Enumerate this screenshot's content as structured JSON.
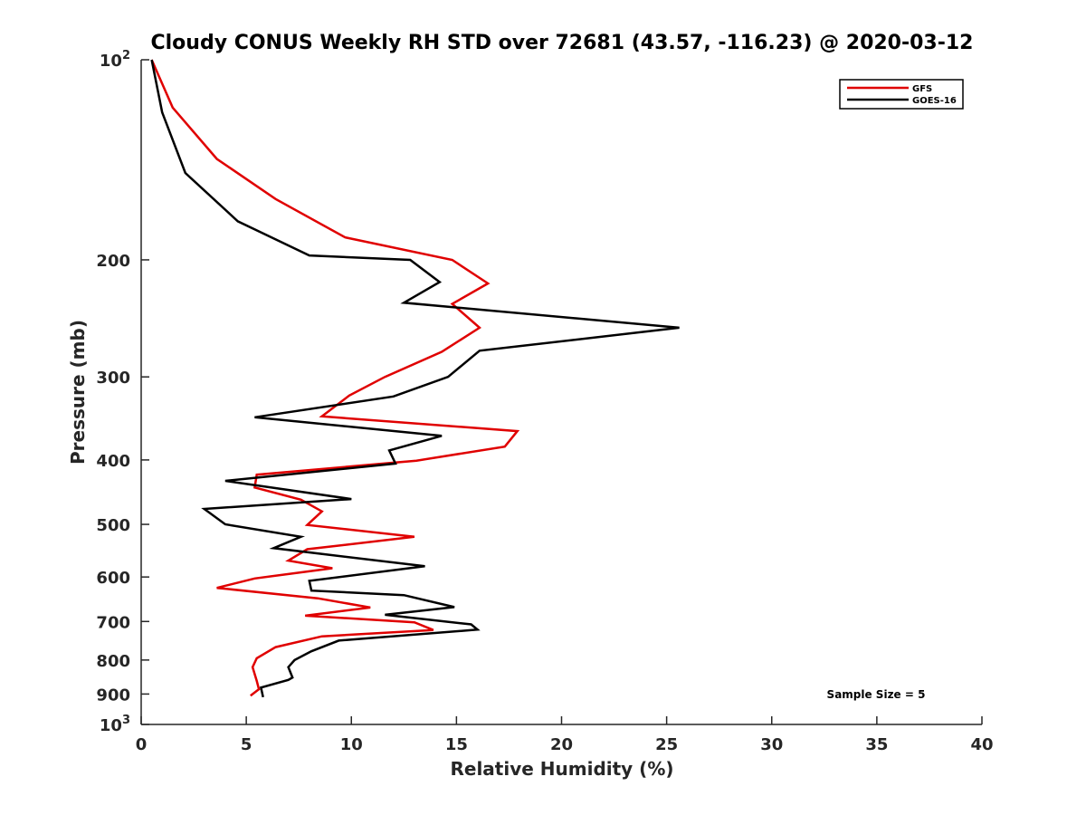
{
  "chart_data": {
    "type": "line",
    "title": "Cloudy CONUS Weekly RH STD over 72681 (43.57, -116.23) @ 2020-03-12",
    "xlabel": "Relative Humidity (%)",
    "ylabel": "Pressure (mb)",
    "xlim": [
      0,
      40
    ],
    "ylim": [
      100,
      1000
    ],
    "y_scale": "log",
    "y_reversed": true,
    "x_ticks": [
      {
        "value": 0,
        "label": "0"
      },
      {
        "value": 5,
        "label": "5"
      },
      {
        "value": 10,
        "label": "10"
      },
      {
        "value": 15,
        "label": "15"
      },
      {
        "value": 20,
        "label": "20"
      },
      {
        "value": 25,
        "label": "25"
      },
      {
        "value": 30,
        "label": "30"
      },
      {
        "value": 35,
        "label": "35"
      },
      {
        "value": 40,
        "label": "40"
      }
    ],
    "y_ticks": [
      {
        "value": 100,
        "label": "10",
        "exp": "2"
      },
      {
        "value": 200,
        "label": "200"
      },
      {
        "value": 300,
        "label": "300"
      },
      {
        "value": 400,
        "label": "400"
      },
      {
        "value": 500,
        "label": "500"
      },
      {
        "value": 600,
        "label": "600"
      },
      {
        "value": 700,
        "label": "700"
      },
      {
        "value": 800,
        "label": "800"
      },
      {
        "value": 900,
        "label": "900"
      },
      {
        "value": 1000,
        "label": "10",
        "exp": "3"
      }
    ],
    "grid": false,
    "legend_position": "top-right",
    "annotation": "Sample Size = 5",
    "series": [
      {
        "name": "GFS",
        "color": "#e00000",
        "points": [
          {
            "x": 0.5,
            "y": 100
          },
          {
            "x": 1.5,
            "y": 118
          },
          {
            "x": 3.6,
            "y": 141
          },
          {
            "x": 6.4,
            "y": 162
          },
          {
            "x": 9.7,
            "y": 185
          },
          {
            "x": 14.8,
            "y": 200
          },
          {
            "x": 16.5,
            "y": 217
          },
          {
            "x": 14.8,
            "y": 233
          },
          {
            "x": 16.1,
            "y": 253
          },
          {
            "x": 14.3,
            "y": 275
          },
          {
            "x": 11.6,
            "y": 300
          },
          {
            "x": 9.9,
            "y": 320
          },
          {
            "x": 8.6,
            "y": 344
          },
          {
            "x": 17.9,
            "y": 362
          },
          {
            "x": 17.3,
            "y": 382
          },
          {
            "x": 13.1,
            "y": 401
          },
          {
            "x": 5.5,
            "y": 421
          },
          {
            "x": 5.4,
            "y": 440
          },
          {
            "x": 7.6,
            "y": 459
          },
          {
            "x": 8.6,
            "y": 478
          },
          {
            "x": 7.9,
            "y": 501
          },
          {
            "x": 13.0,
            "y": 522
          },
          {
            "x": 7.9,
            "y": 545
          },
          {
            "x": 7.0,
            "y": 567
          },
          {
            "x": 9.1,
            "y": 582
          },
          {
            "x": 5.4,
            "y": 603
          },
          {
            "x": 3.6,
            "y": 623
          },
          {
            "x": 8.4,
            "y": 646
          },
          {
            "x": 10.9,
            "y": 667
          },
          {
            "x": 7.8,
            "y": 686
          },
          {
            "x": 13.0,
            "y": 702
          },
          {
            "x": 13.9,
            "y": 721
          },
          {
            "x": 8.6,
            "y": 737
          },
          {
            "x": 6.4,
            "y": 765
          },
          {
            "x": 5.5,
            "y": 795
          },
          {
            "x": 5.3,
            "y": 820
          },
          {
            "x": 5.5,
            "y": 860
          },
          {
            "x": 5.6,
            "y": 885
          },
          {
            "x": 5.2,
            "y": 905
          }
        ]
      },
      {
        "name": "GOES-16",
        "color": "#000000",
        "points": [
          {
            "x": 0.5,
            "y": 100
          },
          {
            "x": 1.0,
            "y": 120
          },
          {
            "x": 2.1,
            "y": 148
          },
          {
            "x": 4.6,
            "y": 175
          },
          {
            "x": 8.0,
            "y": 197
          },
          {
            "x": 12.8,
            "y": 200
          },
          {
            "x": 14.2,
            "y": 216
          },
          {
            "x": 12.5,
            "y": 232
          },
          {
            "x": 25.6,
            "y": 253
          },
          {
            "x": 16.1,
            "y": 274
          },
          {
            "x": 14.6,
            "y": 300
          },
          {
            "x": 12.0,
            "y": 321
          },
          {
            "x": 5.4,
            "y": 345
          },
          {
            "x": 14.3,
            "y": 368
          },
          {
            "x": 11.8,
            "y": 387
          },
          {
            "x": 12.1,
            "y": 405
          },
          {
            "x": 4.0,
            "y": 430
          },
          {
            "x": 10.0,
            "y": 458
          },
          {
            "x": 3.0,
            "y": 474
          },
          {
            "x": 4.0,
            "y": 500
          },
          {
            "x": 7.6,
            "y": 522
          },
          {
            "x": 6.3,
            "y": 543
          },
          {
            "x": 13.5,
            "y": 578
          },
          {
            "x": 8.0,
            "y": 608
          },
          {
            "x": 8.1,
            "y": 629
          },
          {
            "x": 12.5,
            "y": 639
          },
          {
            "x": 14.9,
            "y": 666
          },
          {
            "x": 11.6,
            "y": 684
          },
          {
            "x": 15.7,
            "y": 707
          },
          {
            "x": 16.0,
            "y": 720
          },
          {
            "x": 9.4,
            "y": 748
          },
          {
            "x": 8.1,
            "y": 776
          },
          {
            "x": 7.3,
            "y": 800
          },
          {
            "x": 7.0,
            "y": 820
          },
          {
            "x": 7.2,
            "y": 850
          },
          {
            "x": 7.0,
            "y": 857
          },
          {
            "x": 5.7,
            "y": 880
          },
          {
            "x": 5.8,
            "y": 910
          }
        ]
      }
    ]
  }
}
